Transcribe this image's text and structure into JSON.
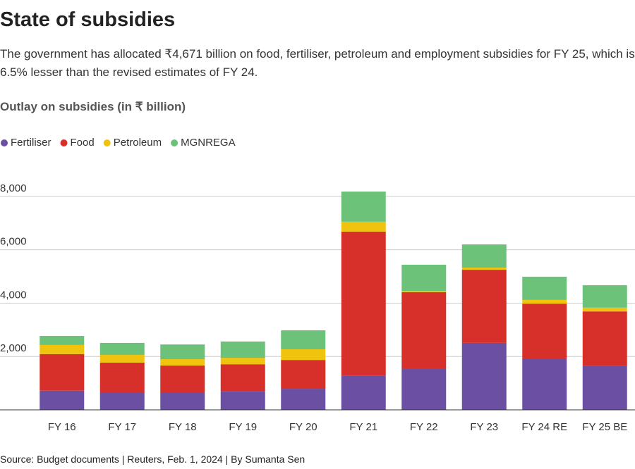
{
  "chart_data": {
    "type": "stacked-bar",
    "title": "State of subsidies",
    "subtitle": "The government has allocated ₹4,671 billion on food, fertiliser, petroleum and employment subsidies for FY 25, which is 6.5% lesser than the revised estimates of FY 24.",
    "chart_title": "Outlay on subsidies (in ₹ billion)",
    "source": "Source: Budget documents | Reuters, Feb. 1, 2024 | By Sumanta Sen",
    "categories": [
      "FY 16",
      "FY 17",
      "FY 18",
      "FY 19",
      "FY 20",
      "FY 21",
      "FY 22",
      "FY 23",
      "FY 24 RE",
      "FY 25 BE"
    ],
    "series": [
      {
        "name": "Fertiliser",
        "color": "#6a4fa3",
        "values": [
          720,
          660,
          660,
          690,
          790,
          1270,
          1530,
          2510,
          1900,
          1660
        ]
      },
      {
        "name": "Food",
        "color": "#d7302b",
        "values": [
          1370,
          1110,
          1000,
          1020,
          1080,
          5410,
          2880,
          2740,
          2080,
          2030
        ]
      },
      {
        "name": "Petroleum",
        "color": "#f0c30f",
        "values": [
          340,
          290,
          240,
          240,
          400,
          370,
          50,
          80,
          140,
          140
        ]
      },
      {
        "name": "MGNREGA",
        "color": "#6dc27a",
        "values": [
          340,
          450,
          550,
          610,
          710,
          1130,
          980,
          870,
          870,
          840
        ]
      }
    ],
    "ylim": [
      0,
      9000
    ],
    "yticks": [
      {
        "value": 2000,
        "label": "2,000"
      },
      {
        "value": 4000,
        "label": "4,000"
      },
      {
        "value": 6000,
        "label": "6,000"
      },
      {
        "value": 8000,
        "label": "8,000"
      }
    ],
    "grid": true
  }
}
